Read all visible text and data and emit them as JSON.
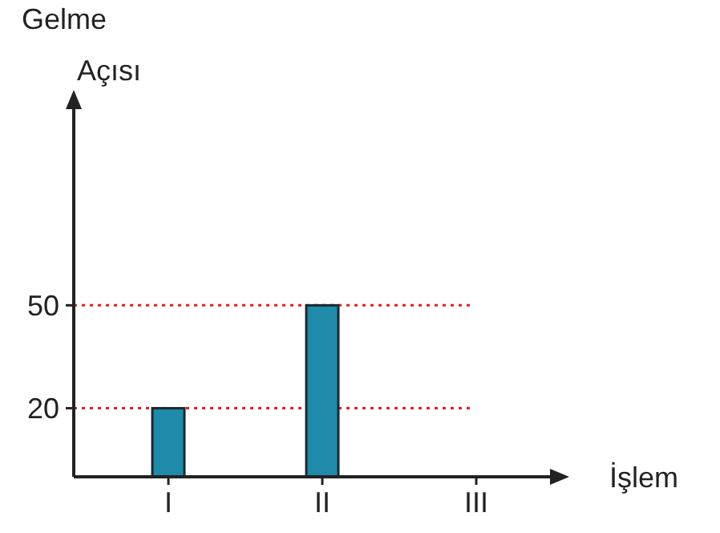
{
  "chart_data": {
    "type": "bar",
    "xlabel": "İşlem",
    "ylabel": "Gelme Açısı",
    "categories": [
      "I",
      "II",
      "III"
    ],
    "values": [
      20,
      50,
      null
    ],
    "color": "#1f8aaa",
    "ylim": [
      0,
      110
    ],
    "yticks": [
      20,
      50
    ],
    "ref_lines": [
      {
        "axis": "y",
        "value": 20,
        "color": "#e02020",
        "line_style": "dotted"
      },
      {
        "axis": "y",
        "value": 50,
        "color": "#e02020",
        "line_style": "dotted"
      }
    ]
  }
}
